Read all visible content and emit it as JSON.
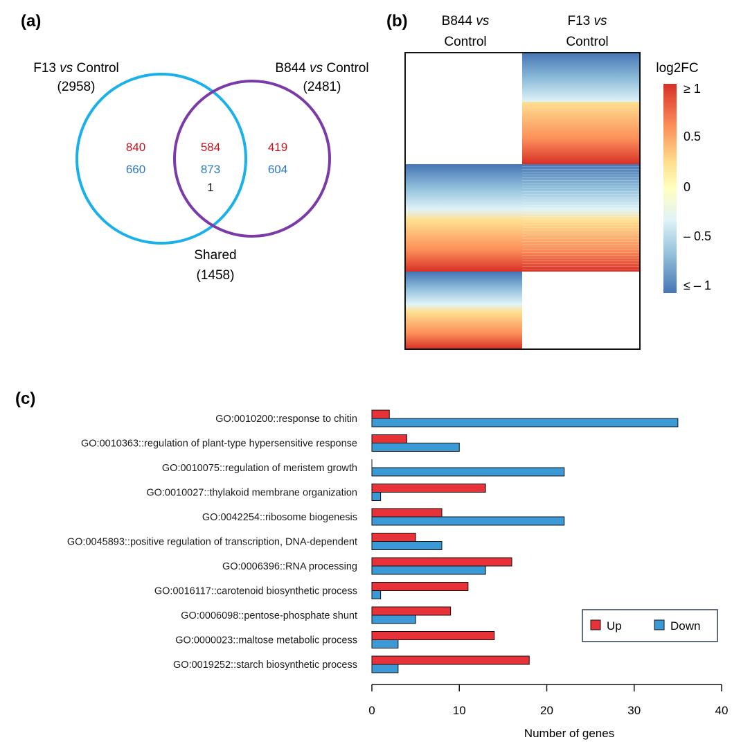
{
  "panels": {
    "a": "(a)",
    "b": "(b)",
    "c": "(c)"
  },
  "venn": {
    "left": {
      "name_pre": "F13 ",
      "name_it": "vs",
      "name_post": " Control",
      "count": "(2958)",
      "color": "#1ab0ea"
    },
    "right": {
      "name_pre": "B844 ",
      "name_it": "vs",
      "name_post": " Control",
      "count": "(2481)",
      "color": "#7b3aa8"
    },
    "shared": {
      "name": "Shared",
      "count": "(1458)"
    },
    "regions": {
      "left_up": "840",
      "left_down": "660",
      "mid_up": "584",
      "mid_down": "873",
      "mid_other": "1",
      "right_up": "419",
      "right_down": "604"
    },
    "up_color": "#c4161c",
    "down_color": "#2a78c2"
  },
  "heatmap": {
    "col1": {
      "pre": "B844 ",
      "it": "vs",
      "line2": "Control"
    },
    "col2": {
      "pre": "F13 ",
      "it": "vs",
      "line2": "Control"
    },
    "legend_title": "log2FC",
    "legend_ticks": [
      "≥ 1",
      "0.5",
      "0",
      "– 0.5",
      "≤ – 1"
    ],
    "palette": [
      "#4575b4",
      "#91bfdb",
      "#e0f3f8",
      "#ffffbf",
      "#fee090",
      "#fc8d59",
      "#d73027"
    ]
  },
  "chart_data": {
    "type": "bar",
    "orientation": "horizontal",
    "categories": [
      "GO:0010200::response to chitin",
      "GO:0010363::regulation of plant-type hypersensitive response",
      "GO:0010075::regulation of meristem growth",
      "GO:0010027::thylakoid membrane organization",
      "GO:0042254::ribosome biogenesis",
      "GO:0045893::positive regulation of transcription, DNA-dependent",
      "GO:0006396::RNA processing",
      "GO:0016117::carotenoid biosynthetic process",
      "GO:0006098::pentose-phosphate shunt",
      "GO:0000023::maltose metabolic process",
      "GO:0019252::starch biosynthetic process"
    ],
    "series": [
      {
        "name": "Up",
        "color": "#e8323a",
        "values": [
          2,
          4,
          0,
          13,
          8,
          5,
          16,
          11,
          9,
          14,
          18
        ]
      },
      {
        "name": "Down",
        "color": "#3b9ad6",
        "values": [
          35,
          10,
          22,
          1,
          22,
          8,
          13,
          1,
          5,
          3,
          3
        ]
      }
    ],
    "xlabel": "Number of genes",
    "xlim": [
      0,
      40
    ],
    "xticks": [
      0,
      10,
      20,
      30,
      40
    ],
    "legend_position": "bottom-right"
  }
}
